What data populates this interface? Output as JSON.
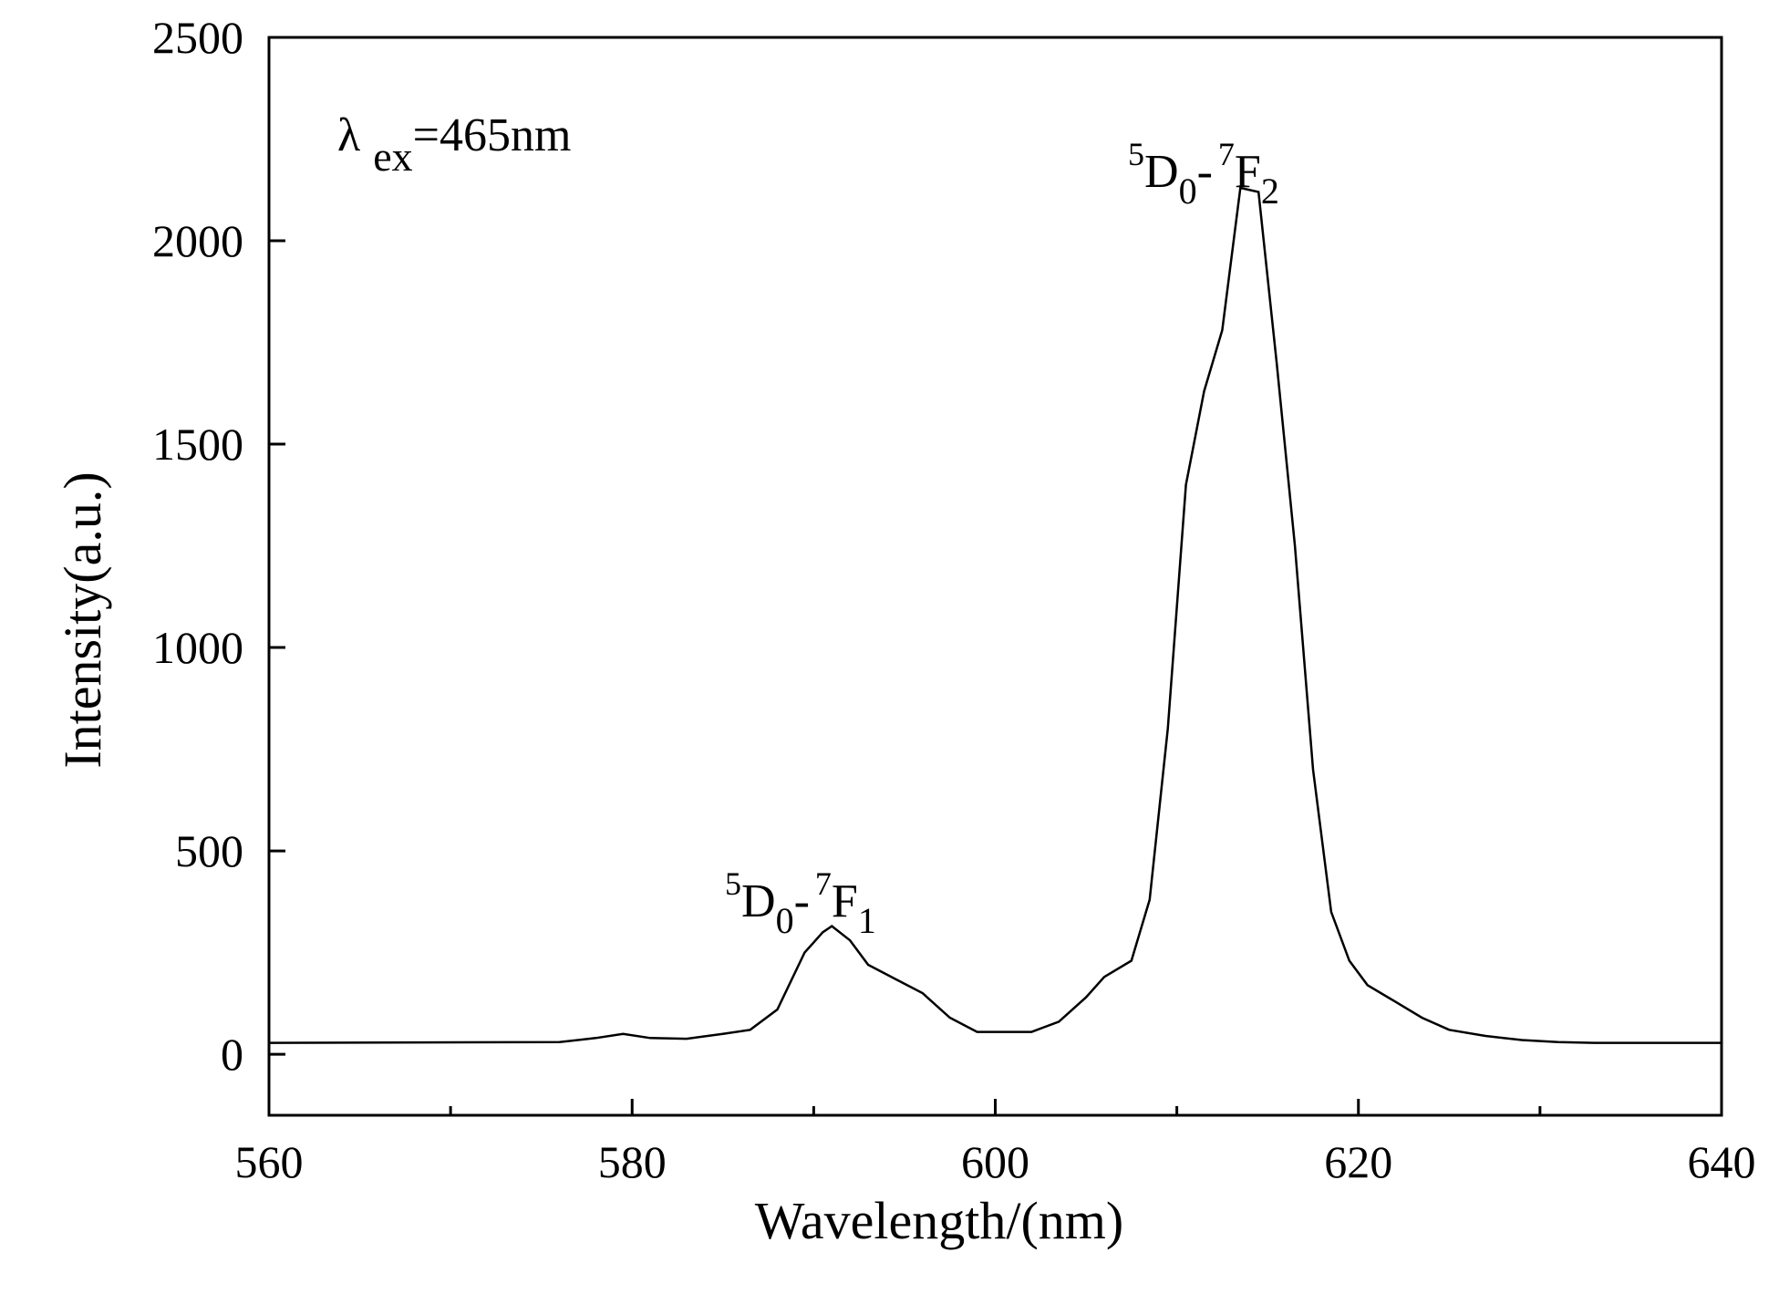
{
  "chart_data": {
    "type": "line",
    "title": "",
    "xlabel": "Wavelength/(nm)",
    "ylabel": "Intensity(a.u.)",
    "xlim": [
      560,
      640
    ],
    "ylim": [
      -150,
      2500
    ],
    "xticks": [
      560,
      580,
      600,
      620,
      640
    ],
    "yticks": [
      0,
      500,
      1000,
      1500,
      2000,
      2500
    ],
    "grid": false,
    "line_color": "#000000",
    "annotations": {
      "excitation": {
        "symbol": "λ",
        "sub": "ex",
        "text": "=465nm"
      },
      "peak1": {
        "sup1": "5",
        "a": "D",
        "sub1": "0",
        "dash": "-",
        "sup2": "7",
        "b": "F",
        "sub2": "1",
        "x": 591,
        "y": 315
      },
      "peak2": {
        "sup1": "5",
        "a": "D",
        "sub1": "0",
        "dash": "-",
        "sup2": "7",
        "b": "F",
        "sub2": "2",
        "x": 614,
        "y": 2130
      }
    },
    "series": [
      {
        "x": [
          560,
          576,
          578,
          579.5,
          581,
          583,
          585,
          586.5,
          588,
          589.5,
          590.5,
          591,
          592,
          593,
          594.5,
          596,
          597.5,
          599,
          602,
          603.5,
          605,
          606,
          607.5,
          608.5,
          609.5,
          610.5,
          611.5,
          612.5,
          613.5,
          614.5,
          615.5,
          616.5,
          617.5,
          618.5,
          619.5,
          620.5,
          622,
          623.5,
          625,
          627,
          629,
          631,
          633,
          640
        ],
        "y": [
          28,
          30,
          40,
          50,
          40,
          38,
          50,
          60,
          110,
          250,
          300,
          315,
          280,
          220,
          185,
          150,
          90,
          55,
          55,
          80,
          140,
          190,
          230,
          380,
          800,
          1400,
          1630,
          1780,
          2130,
          2120,
          1700,
          1250,
          700,
          350,
          230,
          170,
          130,
          90,
          60,
          45,
          35,
          30,
          28,
          28
        ]
      }
    ]
  }
}
